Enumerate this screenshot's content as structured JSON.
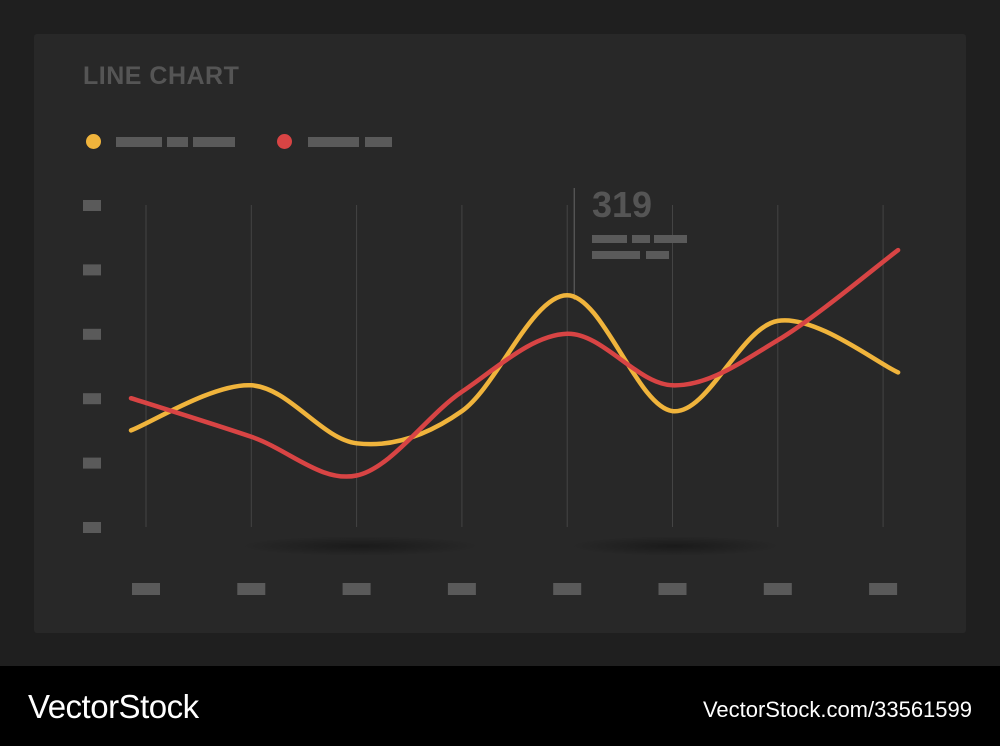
{
  "colors": {
    "page_bg": "#1f1f1f",
    "card_bg": "#282828",
    "placeholder": "#5a5a5a",
    "title": "#555555",
    "series_yellow": "#f0b43c",
    "series_red": "#d84444",
    "footer_bg": "#000000"
  },
  "chart_data": {
    "type": "line",
    "title": "LINE CHART",
    "xlabel": "",
    "ylabel": "",
    "smooth": true,
    "grid": "vertical",
    "legend_position": "top-left",
    "tick_labels": "placeholder bars",
    "x": [
      0,
      1,
      2,
      3,
      4,
      5,
      6,
      7
    ],
    "ylim": [
      0,
      5
    ],
    "series": [
      {
        "color": "#f0b43c",
        "values": [
          1.5,
          2.2,
          1.3,
          1.8,
          3.6,
          1.8,
          3.2,
          2.4
        ]
      },
      {
        "color": "#d84444",
        "values": [
          2.0,
          1.4,
          0.8,
          2.1,
          3.0,
          2.2,
          2.9,
          4.3
        ]
      }
    ],
    "annotation": {
      "x": 4,
      "value": "319"
    }
  },
  "watermark": {
    "left": "VectorStock",
    "right": "VectorStock.com/33561599"
  }
}
